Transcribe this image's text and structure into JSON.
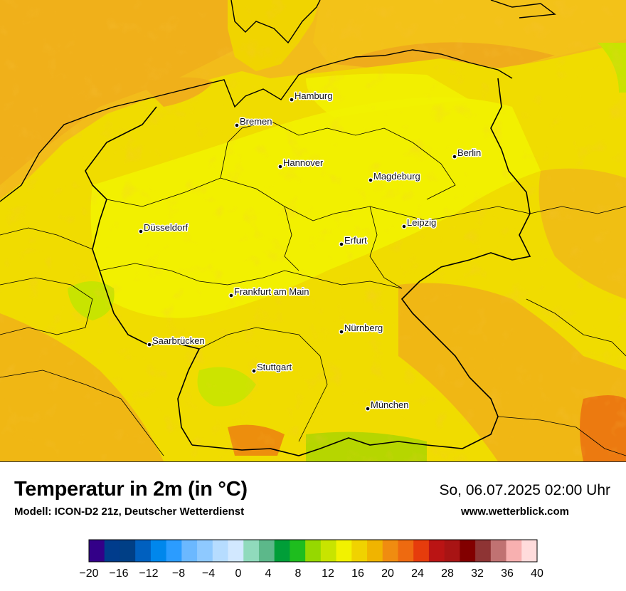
{
  "map": {
    "colors": {
      "sea": "#f2bc1a",
      "sea_light": "#f6c800",
      "land": "#f0dc00",
      "land_bright": "#f2f200",
      "warm": "#f0a818",
      "hot": "#ec7a10",
      "cool": "#c8e400",
      "cooler": "#a8d400",
      "border": "#000000"
    },
    "cities": [
      {
        "name": "Hamburg"
      },
      {
        "name": "Bremen"
      },
      {
        "name": "Berlin"
      },
      {
        "name": "Hannover"
      },
      {
        "name": "Magdeburg"
      },
      {
        "name": "Düsseldorf"
      },
      {
        "name": "Leipzig"
      },
      {
        "name": "Erfurt"
      },
      {
        "name": "Frankfurt am Main"
      },
      {
        "name": "Nürnberg"
      },
      {
        "name": "Saarbrücken"
      },
      {
        "name": "Stuttgart"
      },
      {
        "name": "München"
      }
    ]
  },
  "footer": {
    "title": "Temperatur in 2m (in °C)",
    "model": "Modell: ICON-D2 21z, Deutscher Wetterdienst",
    "datetime": "So, 06.07.2025 02:00 Uhr",
    "website": "www.wetterblick.com"
  },
  "legend": {
    "colors": [
      "#330088",
      "#003c8c",
      "#003f86",
      "#0060bf",
      "#0087ec",
      "#2b9cff",
      "#6bb8ff",
      "#8ec9ff",
      "#b6dcff",
      "#d2e8ff",
      "#90dabc",
      "#5cb88a",
      "#009e38",
      "#1ebd1e",
      "#96d800",
      "#c8e400",
      "#f2f200",
      "#f0d200",
      "#f0b400",
      "#f08c10",
      "#ee6a10",
      "#e63c0c",
      "#ba1414",
      "#a81414",
      "#820000",
      "#8e3434",
      "#c07272",
      "#f8b0b0",
      "#ffdcdc"
    ],
    "tick_labels": [
      "−20",
      "−16",
      "−12",
      "−8",
      "−4",
      "0",
      "4",
      "8",
      "12",
      "16",
      "20",
      "24",
      "28",
      "32",
      "36",
      "40"
    ]
  }
}
